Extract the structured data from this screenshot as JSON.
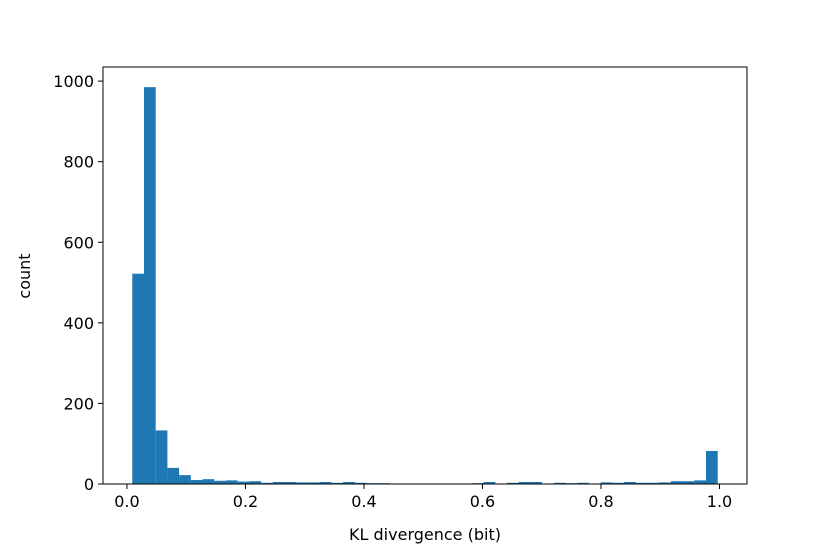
{
  "chart_data": {
    "type": "histogram",
    "x_label": "KL divergence (bit)",
    "y_label": "count",
    "bins": [
      0.009,
      0.0288,
      0.0485,
      0.0683,
      0.088,
      0.1078,
      0.1276,
      0.1473,
      0.1671,
      0.1868,
      0.2066,
      0.2264,
      0.2461,
      0.2659,
      0.2856,
      0.3054,
      0.3252,
      0.3449,
      0.3647,
      0.3844,
      0.4042,
      0.424,
      0.4437,
      0.4635,
      0.4832,
      0.503,
      0.5228,
      0.5425,
      0.5623,
      0.582,
      0.6018,
      0.6216,
      0.6413,
      0.6611,
      0.6808,
      0.7006,
      0.7204,
      0.7401,
      0.7599,
      0.7796,
      0.7994,
      0.8192,
      0.8389,
      0.8587,
      0.8784,
      0.8982,
      0.918,
      0.9377,
      0.9575,
      0.9772,
      0.997
    ],
    "values": [
      522,
      985,
      133,
      40,
      22,
      10,
      12,
      8,
      9,
      6,
      7,
      3,
      5,
      5,
      4,
      4,
      5,
      3,
      5,
      3,
      2,
      2,
      1,
      0,
      0,
      0,
      0,
      0,
      1,
      2,
      5,
      1,
      3,
      5,
      5,
      1,
      3,
      2,
      3,
      1,
      4,
      3,
      5,
      3,
      3,
      4,
      7,
      7,
      9,
      82
    ],
    "color": "#1f77b4",
    "xlim": [
      -0.0404,
      1.0464
    ],
    "xticks": [
      {
        "value": 0,
        "label": "0.0"
      },
      0.2,
      0.4,
      0.6,
      0.8,
      {
        "value": 1,
        "label": "1.0"
      }
    ],
    "ylim": [
      0,
      1035
    ],
    "yticks": [
      0,
      200,
      400,
      600,
      800,
      1000
    ]
  }
}
